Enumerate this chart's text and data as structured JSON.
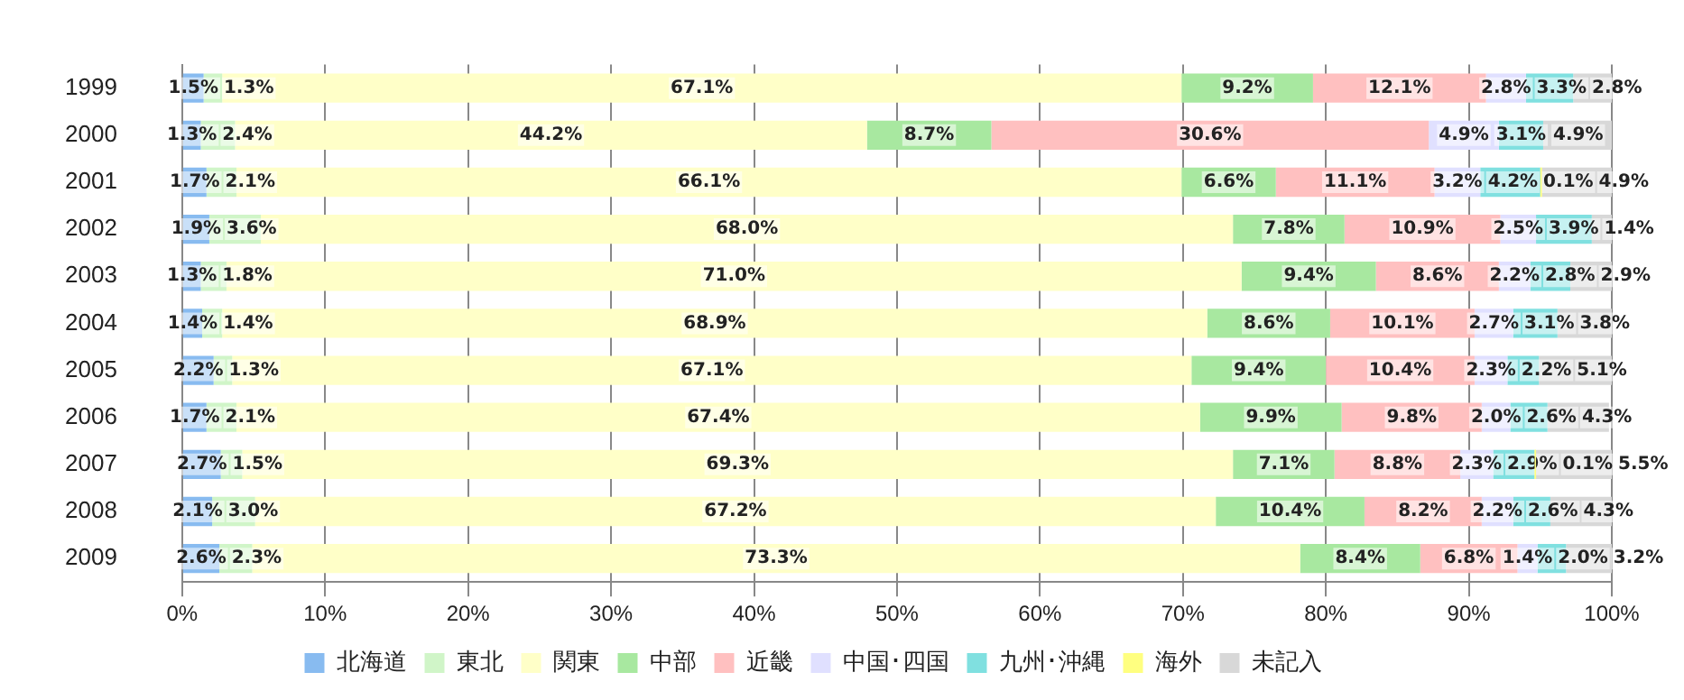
{
  "chart_data": {
    "type": "bar",
    "orientation": "horizontal",
    "stacked": true,
    "categories": [
      "1999",
      "2000",
      "2001",
      "2002",
      "2003",
      "2004",
      "2005",
      "2006",
      "2007",
      "2008",
      "2009"
    ],
    "xlim": [
      0,
      100
    ],
    "xticks": [
      {
        "value": 0,
        "label": "0%"
      },
      {
        "value": 10,
        "label": "10%"
      },
      {
        "value": 20,
        "label": "20%"
      },
      {
        "value": 30,
        "label": "30%"
      },
      {
        "value": 40,
        "label": "40%"
      },
      {
        "value": 50,
        "label": "50%"
      },
      {
        "value": 60,
        "label": "60%"
      },
      {
        "value": 70,
        "label": "70%"
      },
      {
        "value": 80,
        "label": "80%"
      },
      {
        "value": 90,
        "label": "90%"
      },
      {
        "value": 100,
        "label": "100%"
      }
    ],
    "grid": "x",
    "legend": "bottom",
    "series": [
      {
        "name": "北海道",
        "color": "#88bbf0",
        "values": [
          1.5,
          1.3,
          1.7,
          1.9,
          1.3,
          1.4,
          2.2,
          1.7,
          2.7,
          2.1,
          2.6
        ],
        "value_labels": [
          "1.5%",
          "1.3%",
          "1.7%",
          "1.9%",
          "1.3%",
          "1.4%",
          "2.2%",
          "1.7%",
          "2.7%",
          "2.1%",
          "2.6%"
        ]
      },
      {
        "name": "東北",
        "color": "#d0f5c8",
        "values": [
          1.3,
          2.4,
          2.1,
          3.6,
          1.8,
          1.4,
          1.3,
          2.1,
          1.5,
          3.0,
          2.3
        ],
        "value_labels": [
          "1.3%",
          "2.4%",
          "2.1%",
          "3.6%",
          "1.8%",
          "1.4%",
          "1.3%",
          "2.1%",
          "1.5%",
          "3.0%",
          "2.3%"
        ]
      },
      {
        "name": "関東",
        "color": "#ffffc8",
        "values": [
          67.1,
          44.2,
          66.1,
          68.0,
          71.0,
          68.9,
          67.1,
          67.4,
          69.3,
          67.2,
          73.3
        ],
        "value_labels": [
          "67.1%",
          "44.2%",
          "66.1%",
          "68.0%",
          "71.0%",
          "68.9%",
          "67.1%",
          "67.4%",
          "69.3%",
          "67.2%",
          "73.3%"
        ]
      },
      {
        "name": "中部",
        "color": "#a8e8a0",
        "values": [
          9.2,
          8.7,
          6.6,
          7.8,
          9.4,
          8.6,
          9.4,
          9.9,
          7.1,
          10.4,
          8.4
        ],
        "value_labels": [
          "9.2%",
          "8.7%",
          "6.6%",
          "7.8%",
          "9.4%",
          "8.6%",
          "9.4%",
          "9.9%",
          "7.1%",
          "10.4%",
          "8.4%"
        ]
      },
      {
        "name": "近畿",
        "color": "#ffc0c0",
        "values": [
          12.1,
          30.6,
          11.1,
          10.9,
          8.6,
          10.1,
          10.4,
          9.8,
          8.8,
          8.2,
          6.8
        ],
        "value_labels": [
          "12.1%",
          "30.6%",
          "11.1%",
          "10.9%",
          "8.6%",
          "10.1%",
          "10.4%",
          "9.8%",
          "8.8%",
          "8.2%",
          "6.8%"
        ]
      },
      {
        "name": "中国･四国",
        "color": "#e0e0ff",
        "values": [
          2.8,
          4.9,
          3.2,
          2.5,
          2.2,
          2.7,
          2.3,
          2.0,
          2.3,
          2.2,
          1.4
        ],
        "value_labels": [
          "2.8%",
          "4.9%",
          "3.2%",
          "2.5%",
          "2.2%",
          "2.7%",
          "2.3%",
          "2.0%",
          "2.3%",
          "2.2%",
          "1.4%"
        ]
      },
      {
        "name": "九州･沖縄",
        "color": "#80e0e0",
        "values": [
          3.3,
          3.1,
          4.2,
          3.9,
          2.8,
          3.1,
          2.2,
          2.6,
          2.9,
          2.6,
          2.0
        ],
        "value_labels": [
          "3.3%",
          "3.1%",
          "4.2%",
          "3.9%",
          "2.8%",
          "3.1%",
          "2.2%",
          "2.6%",
          "2.9%",
          "2.6%",
          "2.0%"
        ]
      },
      {
        "name": "海外",
        "color": "#ffff80",
        "values": [
          null,
          null,
          0.1,
          null,
          null,
          null,
          null,
          null,
          0.1,
          null,
          null
        ],
        "value_labels": [
          null,
          null,
          "0.1%",
          null,
          null,
          null,
          null,
          null,
          "0.1%",
          null,
          null
        ]
      },
      {
        "name": "未記入",
        "color": "#d8d8d8",
        "values": [
          2.8,
          4.9,
          4.9,
          1.4,
          2.9,
          3.8,
          5.1,
          4.3,
          5.5,
          4.3,
          3.2
        ],
        "value_labels": [
          "2.8%",
          "4.9%",
          "4.9%",
          "1.4%",
          "2.9%",
          "3.8%",
          "5.1%",
          "4.3%",
          "5.5%",
          "4.3%",
          "3.2%"
        ]
      }
    ]
  }
}
